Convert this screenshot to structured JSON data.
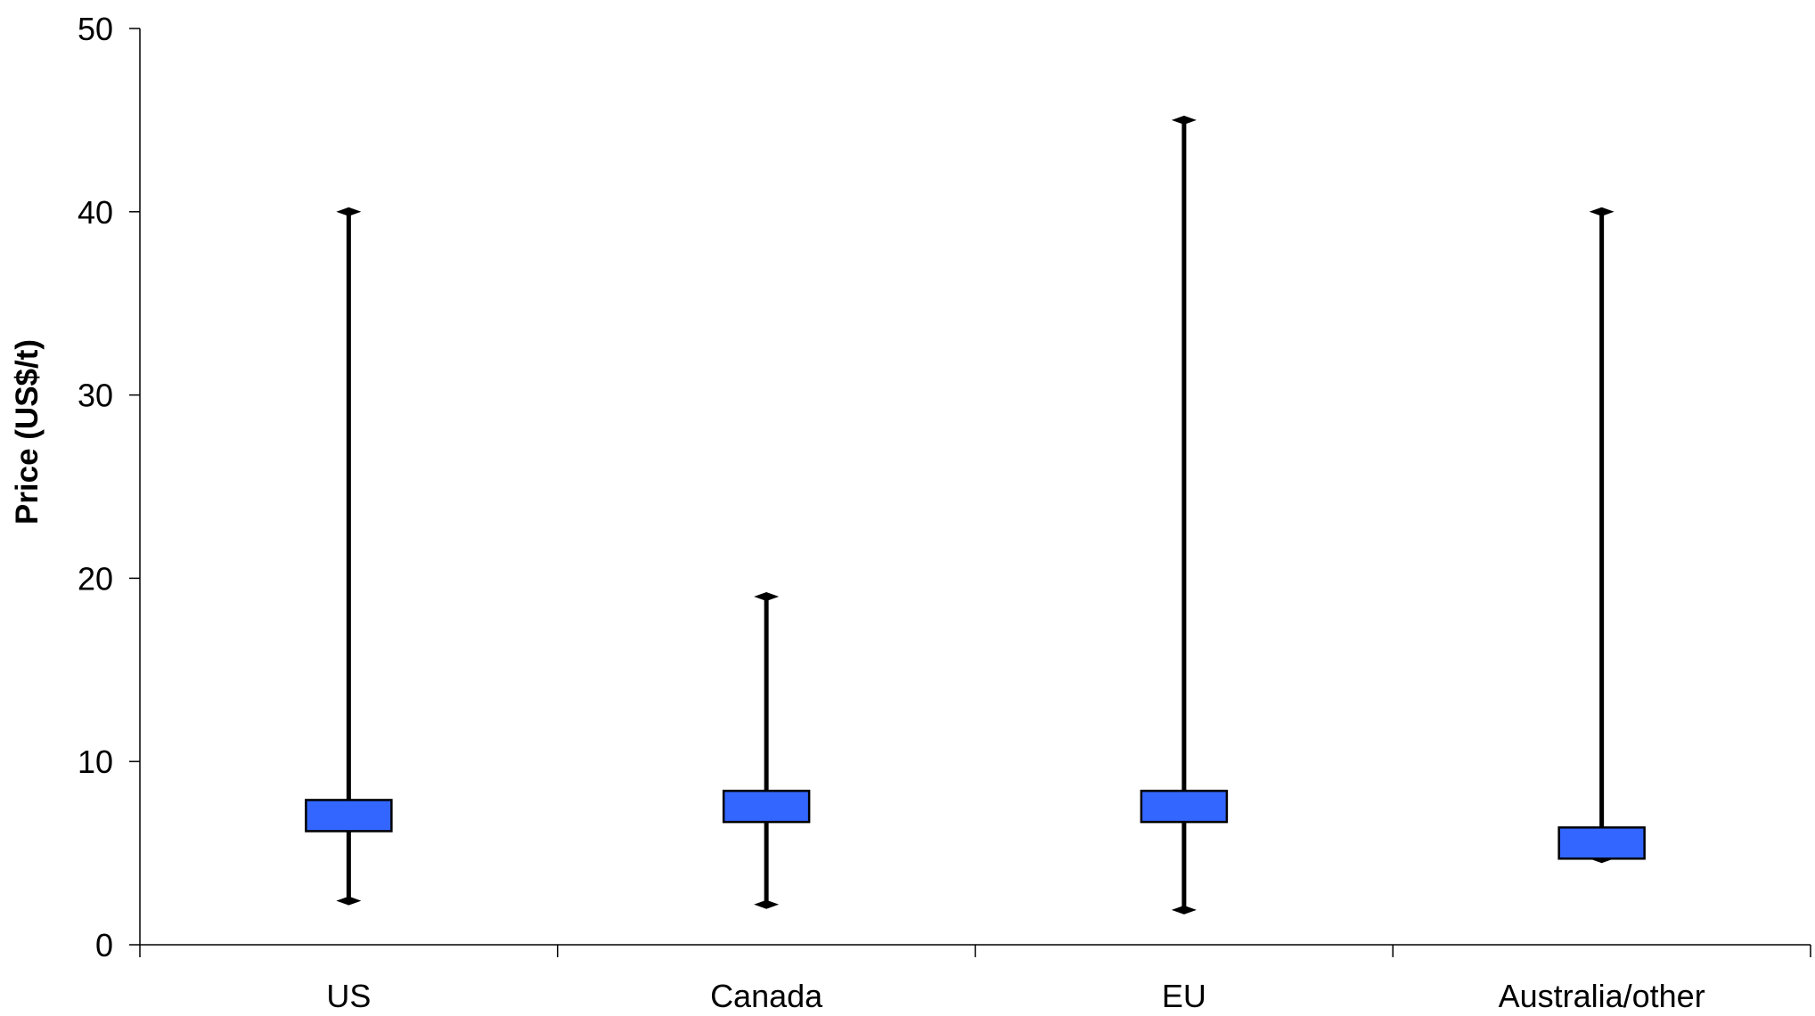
{
  "chart_data": {
    "type": "box",
    "title": "",
    "xlabel": "",
    "ylabel": "Price (US$/t)",
    "ylim": [
      0,
      50
    ],
    "yticks": [
      0,
      10,
      20,
      30,
      40,
      50
    ],
    "grid": false,
    "legend": "none",
    "categories": [
      "US",
      "Canada",
      "EU",
      "Australia/other"
    ],
    "series": [
      {
        "category": "US",
        "min": 2.4,
        "q1": 6.2,
        "q3": 7.9,
        "max": 40
      },
      {
        "category": "Canada",
        "min": 2.2,
        "q1": 6.7,
        "q3": 8.4,
        "max": 19
      },
      {
        "category": "EU",
        "min": 1.9,
        "q1": 6.7,
        "q3": 8.4,
        "max": 45
      },
      {
        "category": "Australia/other",
        "min": 4.7,
        "q1": 4.7,
        "q3": 6.4,
        "max": 40
      }
    ],
    "colors": {
      "box_fill": "#3366ff",
      "whisker": "#000000",
      "axis": "#000000"
    }
  }
}
